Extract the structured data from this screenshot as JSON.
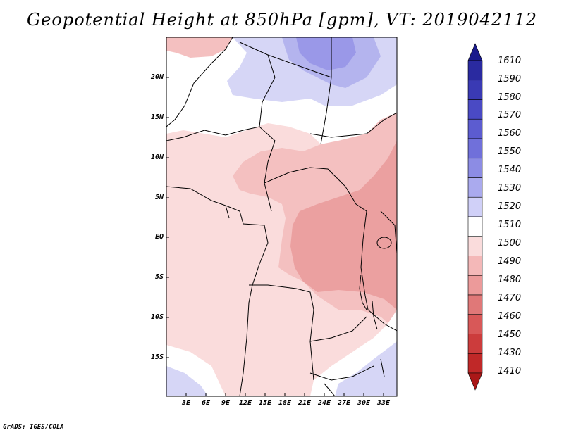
{
  "title": "Geopotential Height at 850hPa [gpm], VT: 2019042112",
  "credit": "GrADS: IGES/COLA",
  "map": {
    "region": "Central Africa",
    "lon_range": [
      0,
      35
    ],
    "lat_range": [
      -20,
      24
    ],
    "lat_labels": [
      "20N",
      "15N",
      "10N",
      "5N",
      "EQ",
      "5S",
      "10S",
      "15S"
    ],
    "lon_labels": [
      "3E",
      "6E",
      "9E",
      "12E",
      "15E",
      "18E",
      "21E",
      "24E",
      "27E",
      "30E",
      "33E"
    ]
  },
  "colorbar": {
    "levels": [
      "1610",
      "1590",
      "1580",
      "1570",
      "1560",
      "1550",
      "1540",
      "1530",
      "1520",
      "1510",
      "1500",
      "1490",
      "1480",
      "1470",
      "1460",
      "1450",
      "1430",
      "1410"
    ],
    "colors": [
      "#1a1a8c",
      "#2a2aa0",
      "#3a3ab4",
      "#4a4ac4",
      "#5c5cd0",
      "#7070da",
      "#8c8ce4",
      "#aaaaee",
      "#d0d0f8",
      "#ffffff",
      "#fadcdc",
      "#f4b8b8",
      "#ec9a9a",
      "#e07878",
      "#d85858",
      "#cc3c3c",
      "#c02828",
      "#aa1818"
    ]
  },
  "field": {
    "fill_colors": {
      "h1520": "#d6d6f6",
      "h1530": "#b4b4ee",
      "h1540": "#9a98e8",
      "h1510": "#ffffff",
      "h1500": "#fadcdc",
      "h1490": "#f4c0c0",
      "h1480": "#eba0a0"
    }
  }
}
